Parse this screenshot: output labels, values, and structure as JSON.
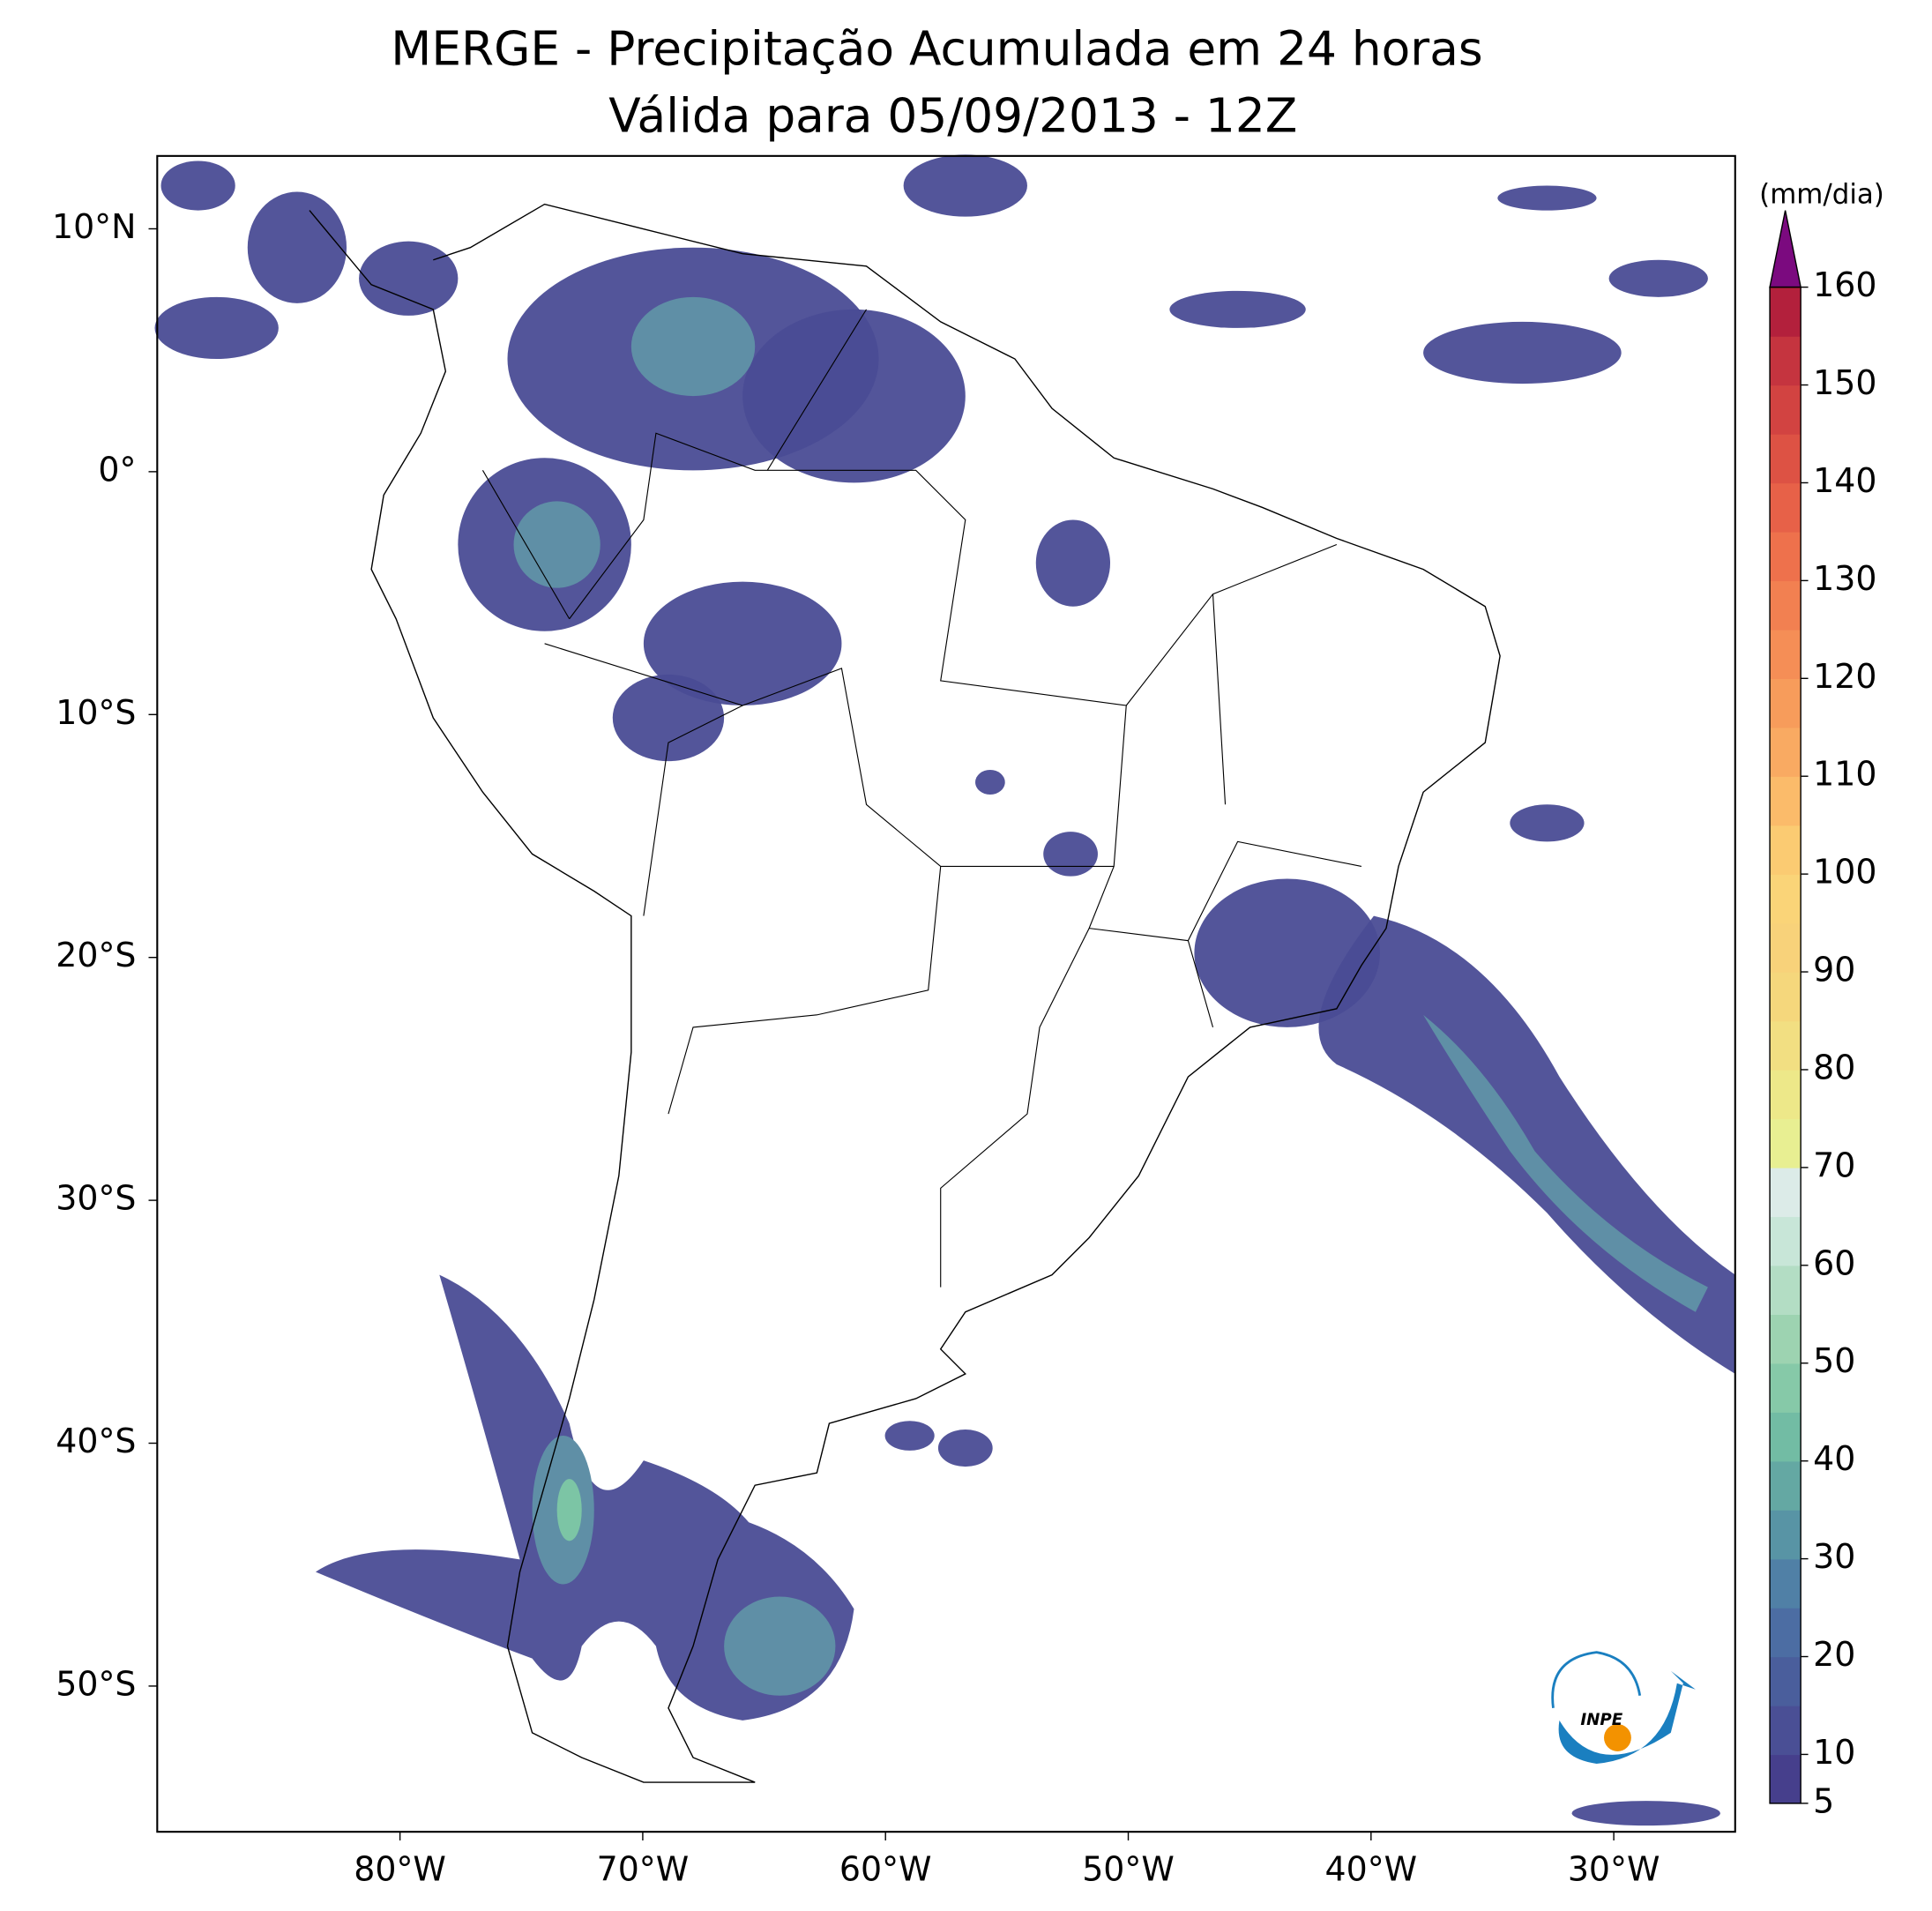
{
  "chart_data": {
    "type": "map",
    "title": "MERGE - Precipitação Acumulada em 24 horas",
    "subtitle": "Válida para 05/09/2013 - 12Z",
    "xlim": [
      -90,
      -25
    ],
    "ylim": [
      -56,
      13
    ],
    "xticks": [
      {
        "value": -80,
        "label": "80°W"
      },
      {
        "value": -70,
        "label": "70°W"
      },
      {
        "value": -60,
        "label": "60°W"
      },
      {
        "value": -50,
        "label": "50°W"
      },
      {
        "value": -40,
        "label": "40°W"
      },
      {
        "value": -30,
        "label": "30°W"
      }
    ],
    "yticks": [
      {
        "value": 10,
        "label": "10°N"
      },
      {
        "value": 0,
        "label": "0°"
      },
      {
        "value": -10,
        "label": "10°S"
      },
      {
        "value": -20,
        "label": "20°S"
      },
      {
        "value": -30,
        "label": "30°S"
      },
      {
        "value": -40,
        "label": "40°S"
      },
      {
        "value": -50,
        "label": "50°S"
      }
    ],
    "colorbar": {
      "label": "(mm/dia)",
      "lim": [
        5,
        160
      ],
      "levels": [
        5,
        10,
        15,
        20,
        25,
        30,
        35,
        40,
        45,
        50,
        55,
        60,
        65,
        70,
        75,
        80,
        85,
        90,
        95,
        100,
        105,
        110,
        115,
        120,
        125,
        130,
        135,
        140,
        145,
        150,
        155,
        160
      ],
      "colors": [
        "#463f8c",
        "#4a4f95",
        "#4a5e9c",
        "#4c6da3",
        "#5080a6",
        "#5894a5",
        "#64a8a3",
        "#72bca4",
        "#86c9a8",
        "#9dd3b1",
        "#b3ddc4",
        "#c8e6d8",
        "#dcebe8",
        "#e8ef92",
        "#ede889",
        "#f2df82",
        "#f5d77c",
        "#f8d27a",
        "#fad478",
        "#fbcb72",
        "#fbbb6a",
        "#f9aa62",
        "#f79c5b",
        "#f58e56",
        "#f28051",
        "#ee714c",
        "#e76148",
        "#dd5244",
        "#d24341",
        "#c5343f",
        "#b3203c"
      ],
      "extend_color": "#7b0a7f",
      "ticks": [
        5,
        10,
        20,
        30,
        40,
        50,
        60,
        70,
        80,
        90,
        100,
        110,
        120,
        130,
        140,
        150,
        160
      ]
    },
    "logo": "INPE"
  }
}
